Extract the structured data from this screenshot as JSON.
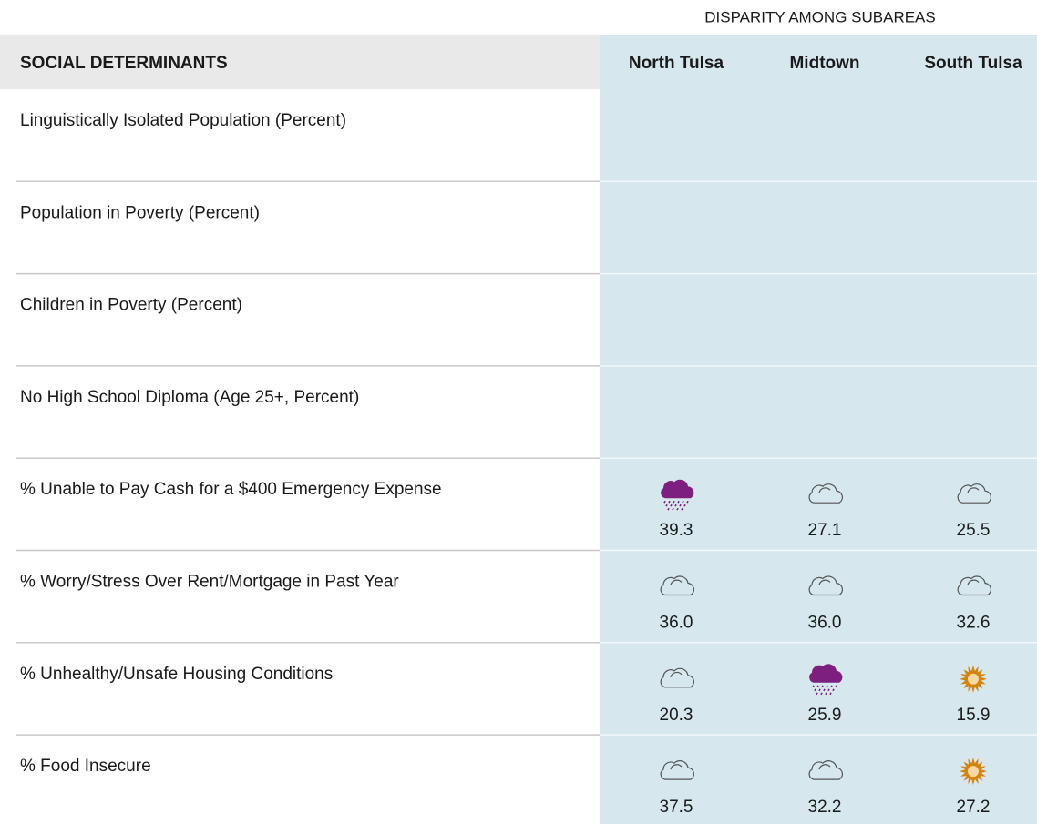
{
  "header": {
    "super_title": "DISPARITY AMONG SUBAREAS",
    "title": "SOCIAL DETERMINANTS",
    "columns": [
      "North Tulsa",
      "Midtown",
      "South Tulsa"
    ]
  },
  "table": {
    "rows": [
      {
        "label": "Linguistically Isolated Population (Percent)",
        "cells": []
      },
      {
        "label": "Population in Poverty (Percent)",
        "cells": []
      },
      {
        "label": "Children in Poverty (Percent)",
        "cells": []
      },
      {
        "label": "No High School Diploma (Age 25+, Percent)",
        "cells": []
      },
      {
        "label": "% Unable to Pay Cash for a $400 Emergency Expense",
        "cells": [
          {
            "icon": "rain",
            "value": "39.3"
          },
          {
            "icon": "cloud",
            "value": "27.1"
          },
          {
            "icon": "cloud",
            "value": "25.5"
          }
        ]
      },
      {
        "label": "% Worry/Stress Over Rent/Mortgage in Past Year",
        "cells": [
          {
            "icon": "cloud",
            "value": "36.0"
          },
          {
            "icon": "cloud",
            "value": "36.0"
          },
          {
            "icon": "cloud",
            "value": "32.6"
          }
        ]
      },
      {
        "label": "% Unhealthy/Unsafe Housing Conditions",
        "cells": [
          {
            "icon": "cloud",
            "value": "20.3"
          },
          {
            "icon": "rain",
            "value": "25.9"
          },
          {
            "icon": "sun",
            "value": "15.9"
          }
        ]
      },
      {
        "label": "% Food Insecure",
        "cells": [
          {
            "icon": "cloud",
            "value": "37.5"
          },
          {
            "icon": "cloud",
            "value": "32.2"
          },
          {
            "icon": "sun",
            "value": "27.2"
          }
        ]
      }
    ]
  }
}
